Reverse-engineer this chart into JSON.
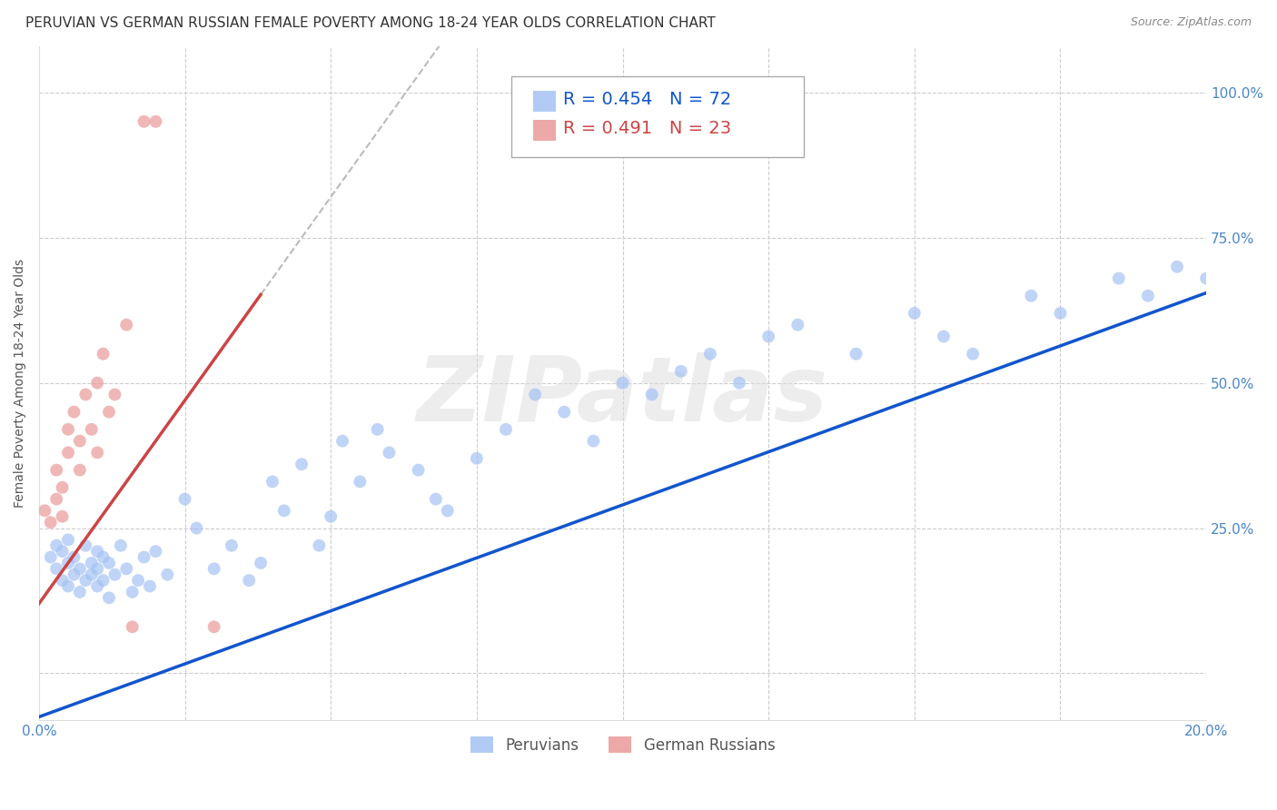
{
  "title": "PERUVIAN VS GERMAN RUSSIAN FEMALE POVERTY AMONG 18-24 YEAR OLDS CORRELATION CHART",
  "source": "Source: ZipAtlas.com",
  "ylabel": "Female Poverty Among 18-24 Year Olds",
  "blue_label": "Peruvians",
  "pink_label": "German Russians",
  "blue_R": 0.454,
  "blue_N": 72,
  "pink_R": 0.491,
  "pink_N": 23,
  "xlim": [
    0.0,
    0.2
  ],
  "ylim": [
    -0.08,
    1.08
  ],
  "yticks": [
    0.0,
    0.25,
    0.5,
    0.75,
    1.0
  ],
  "ytick_labels": [
    "",
    "25.0%",
    "50.0%",
    "75.0%",
    "100.0%"
  ],
  "xticks": [
    0.0,
    0.025,
    0.05,
    0.075,
    0.1,
    0.125,
    0.15,
    0.175,
    0.2
  ],
  "xtick_labels": [
    "0.0%",
    "",
    "",
    "",
    "",
    "",
    "",
    "",
    "20.0%"
  ],
  "blue_color": "#a4c2f4",
  "pink_color": "#ea9999",
  "blue_line_color": "#1155cc",
  "pink_line_color": "#cc4444",
  "gray_dash_color": "#bbbbbb",
  "axis_color": "#4a86c8",
  "tick_color": "#4a86c8",
  "watermark_text": "ZIPatlas",
  "background_color": "#ffffff",
  "grid_color": "#cccccc",
  "title_fontsize": 11,
  "label_fontsize": 10,
  "tick_fontsize": 11,
  "legend_fontsize": 13,
  "blue_intercept": -0.075,
  "blue_slope": 3.65,
  "pink_intercept": 0.12,
  "pink_slope": 14.0,
  "blue_points_x": [
    0.002,
    0.003,
    0.003,
    0.004,
    0.004,
    0.005,
    0.005,
    0.005,
    0.006,
    0.006,
    0.007,
    0.007,
    0.008,
    0.008,
    0.009,
    0.009,
    0.01,
    0.01,
    0.01,
    0.011,
    0.011,
    0.012,
    0.012,
    0.013,
    0.014,
    0.015,
    0.016,
    0.017,
    0.018,
    0.019,
    0.02,
    0.022,
    0.025,
    0.027,
    0.03,
    0.033,
    0.036,
    0.038,
    0.04,
    0.042,
    0.045,
    0.048,
    0.05,
    0.052,
    0.055,
    0.058,
    0.06,
    0.065,
    0.068,
    0.07,
    0.075,
    0.08,
    0.085,
    0.09,
    0.095,
    0.1,
    0.105,
    0.11,
    0.115,
    0.12,
    0.125,
    0.13,
    0.14,
    0.15,
    0.155,
    0.16,
    0.17,
    0.175,
    0.185,
    0.19,
    0.195,
    0.2
  ],
  "blue_points_y": [
    0.2,
    0.18,
    0.22,
    0.16,
    0.21,
    0.19,
    0.15,
    0.23,
    0.17,
    0.2,
    0.18,
    0.14,
    0.16,
    0.22,
    0.19,
    0.17,
    0.21,
    0.15,
    0.18,
    0.2,
    0.16,
    0.19,
    0.13,
    0.17,
    0.22,
    0.18,
    0.14,
    0.16,
    0.2,
    0.15,
    0.21,
    0.17,
    0.3,
    0.25,
    0.18,
    0.22,
    0.16,
    0.19,
    0.33,
    0.28,
    0.36,
    0.22,
    0.27,
    0.4,
    0.33,
    0.42,
    0.38,
    0.35,
    0.3,
    0.28,
    0.37,
    0.42,
    0.48,
    0.45,
    0.4,
    0.5,
    0.48,
    0.52,
    0.55,
    0.5,
    0.58,
    0.6,
    0.55,
    0.62,
    0.58,
    0.55,
    0.65,
    0.62,
    0.68,
    0.65,
    0.7,
    0.68
  ],
  "pink_points_x": [
    0.001,
    0.002,
    0.003,
    0.003,
    0.004,
    0.004,
    0.005,
    0.005,
    0.006,
    0.007,
    0.007,
    0.008,
    0.009,
    0.01,
    0.01,
    0.011,
    0.012,
    0.013,
    0.015,
    0.016,
    0.018,
    0.02,
    0.03
  ],
  "pink_points_y": [
    0.28,
    0.26,
    0.3,
    0.35,
    0.27,
    0.32,
    0.38,
    0.42,
    0.45,
    0.35,
    0.4,
    0.48,
    0.42,
    0.5,
    0.38,
    0.55,
    0.45,
    0.48,
    0.6,
    0.08,
    0.95,
    0.95,
    0.08
  ]
}
